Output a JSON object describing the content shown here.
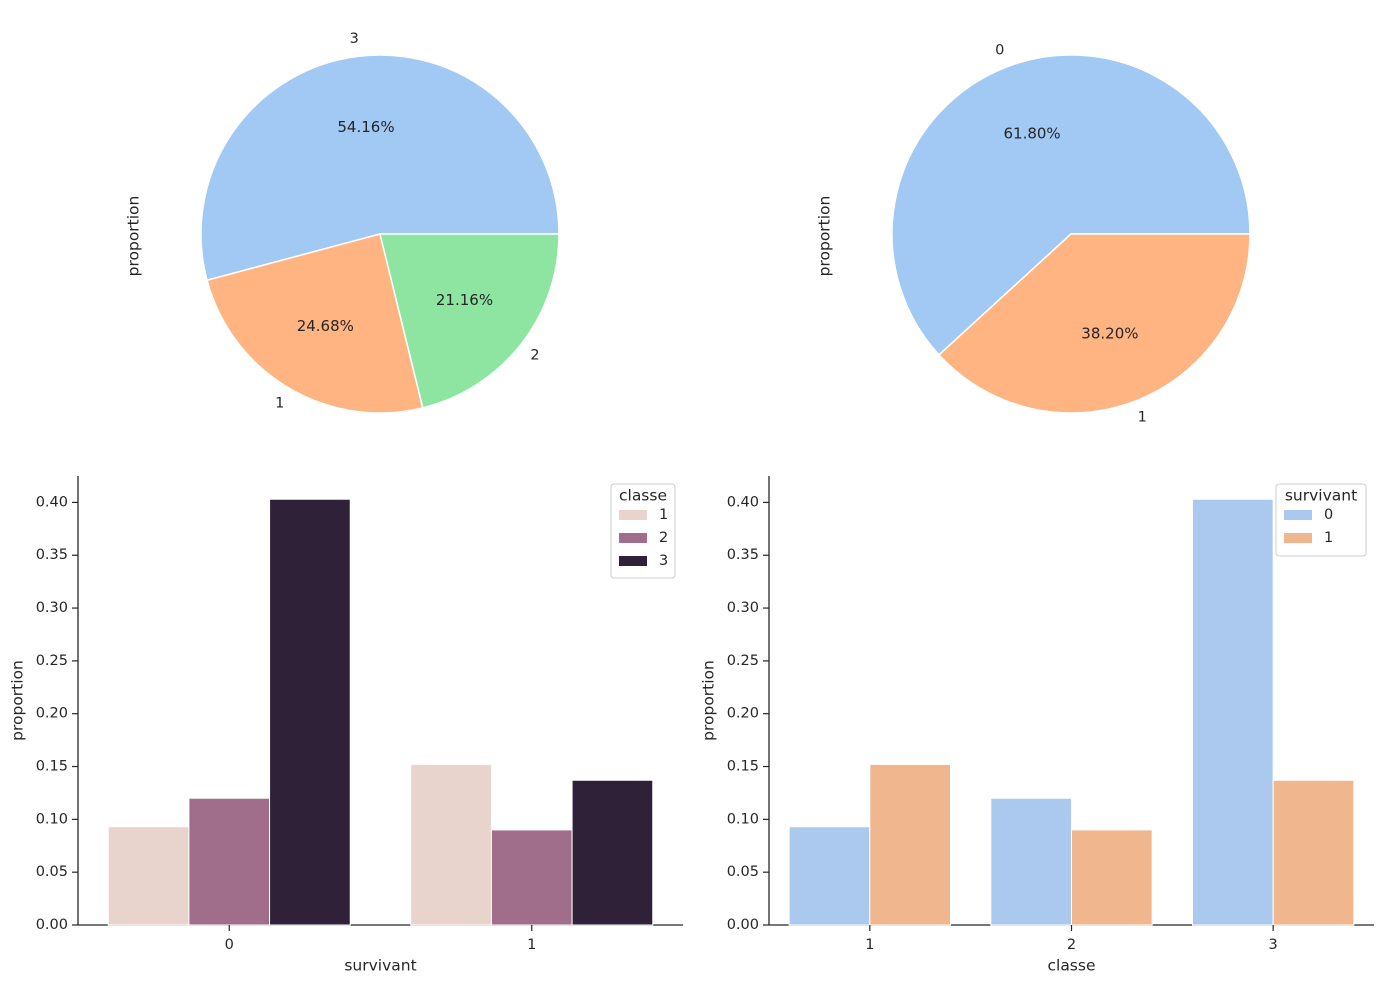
{
  "chart_data": [
    {
      "type": "pie",
      "ylabel": "proportion",
      "labels": [
        "3",
        "1",
        "2"
      ],
      "values": [
        54.16,
        24.68,
        21.16
      ],
      "value_labels": [
        "54.16%",
        "24.68%",
        "21.16%"
      ],
      "colors": [
        "#a1c9f4",
        "#ffb482",
        "#8de5a1"
      ]
    },
    {
      "type": "pie",
      "ylabel": "proportion",
      "labels": [
        "0",
        "1"
      ],
      "values": [
        61.8,
        38.2
      ],
      "value_labels": [
        "61.80%",
        "38.20%"
      ],
      "colors": [
        "#a1c9f4",
        "#ffb482"
      ]
    },
    {
      "type": "bar",
      "xlabel": "survivant",
      "ylabel": "proportion",
      "categories": [
        "0",
        "1"
      ],
      "ylim": [
        0,
        0.425
      ],
      "yticks": [
        "0.00",
        "0.05",
        "0.10",
        "0.15",
        "0.20",
        "0.25",
        "0.30",
        "0.35",
        "0.40"
      ],
      "legend": {
        "title": "classe",
        "position": "top-right"
      },
      "series": [
        {
          "name": "1",
          "values": [
            0.093,
            0.152
          ],
          "color": "#e8d3cd"
        },
        {
          "name": "2",
          "values": [
            0.12,
            0.09
          ],
          "color": "#a06d8a"
        },
        {
          "name": "3",
          "values": [
            0.403,
            0.137
          ],
          "color": "#2f2238"
        }
      ]
    },
    {
      "type": "bar",
      "xlabel": "classe",
      "ylabel": "proportion",
      "categories": [
        "1",
        "2",
        "3"
      ],
      "ylim": [
        0,
        0.425
      ],
      "yticks": [
        "0.00",
        "0.05",
        "0.10",
        "0.15",
        "0.20",
        "0.25",
        "0.30",
        "0.35",
        "0.40"
      ],
      "legend": {
        "title": "survivant",
        "position": "top-right"
      },
      "series": [
        {
          "name": "0",
          "values": [
            0.093,
            0.12,
            0.403
          ],
          "color": "#abc9ee"
        },
        {
          "name": "1",
          "values": [
            0.152,
            0.09,
            0.137
          ],
          "color": "#f0b78f"
        }
      ]
    }
  ]
}
